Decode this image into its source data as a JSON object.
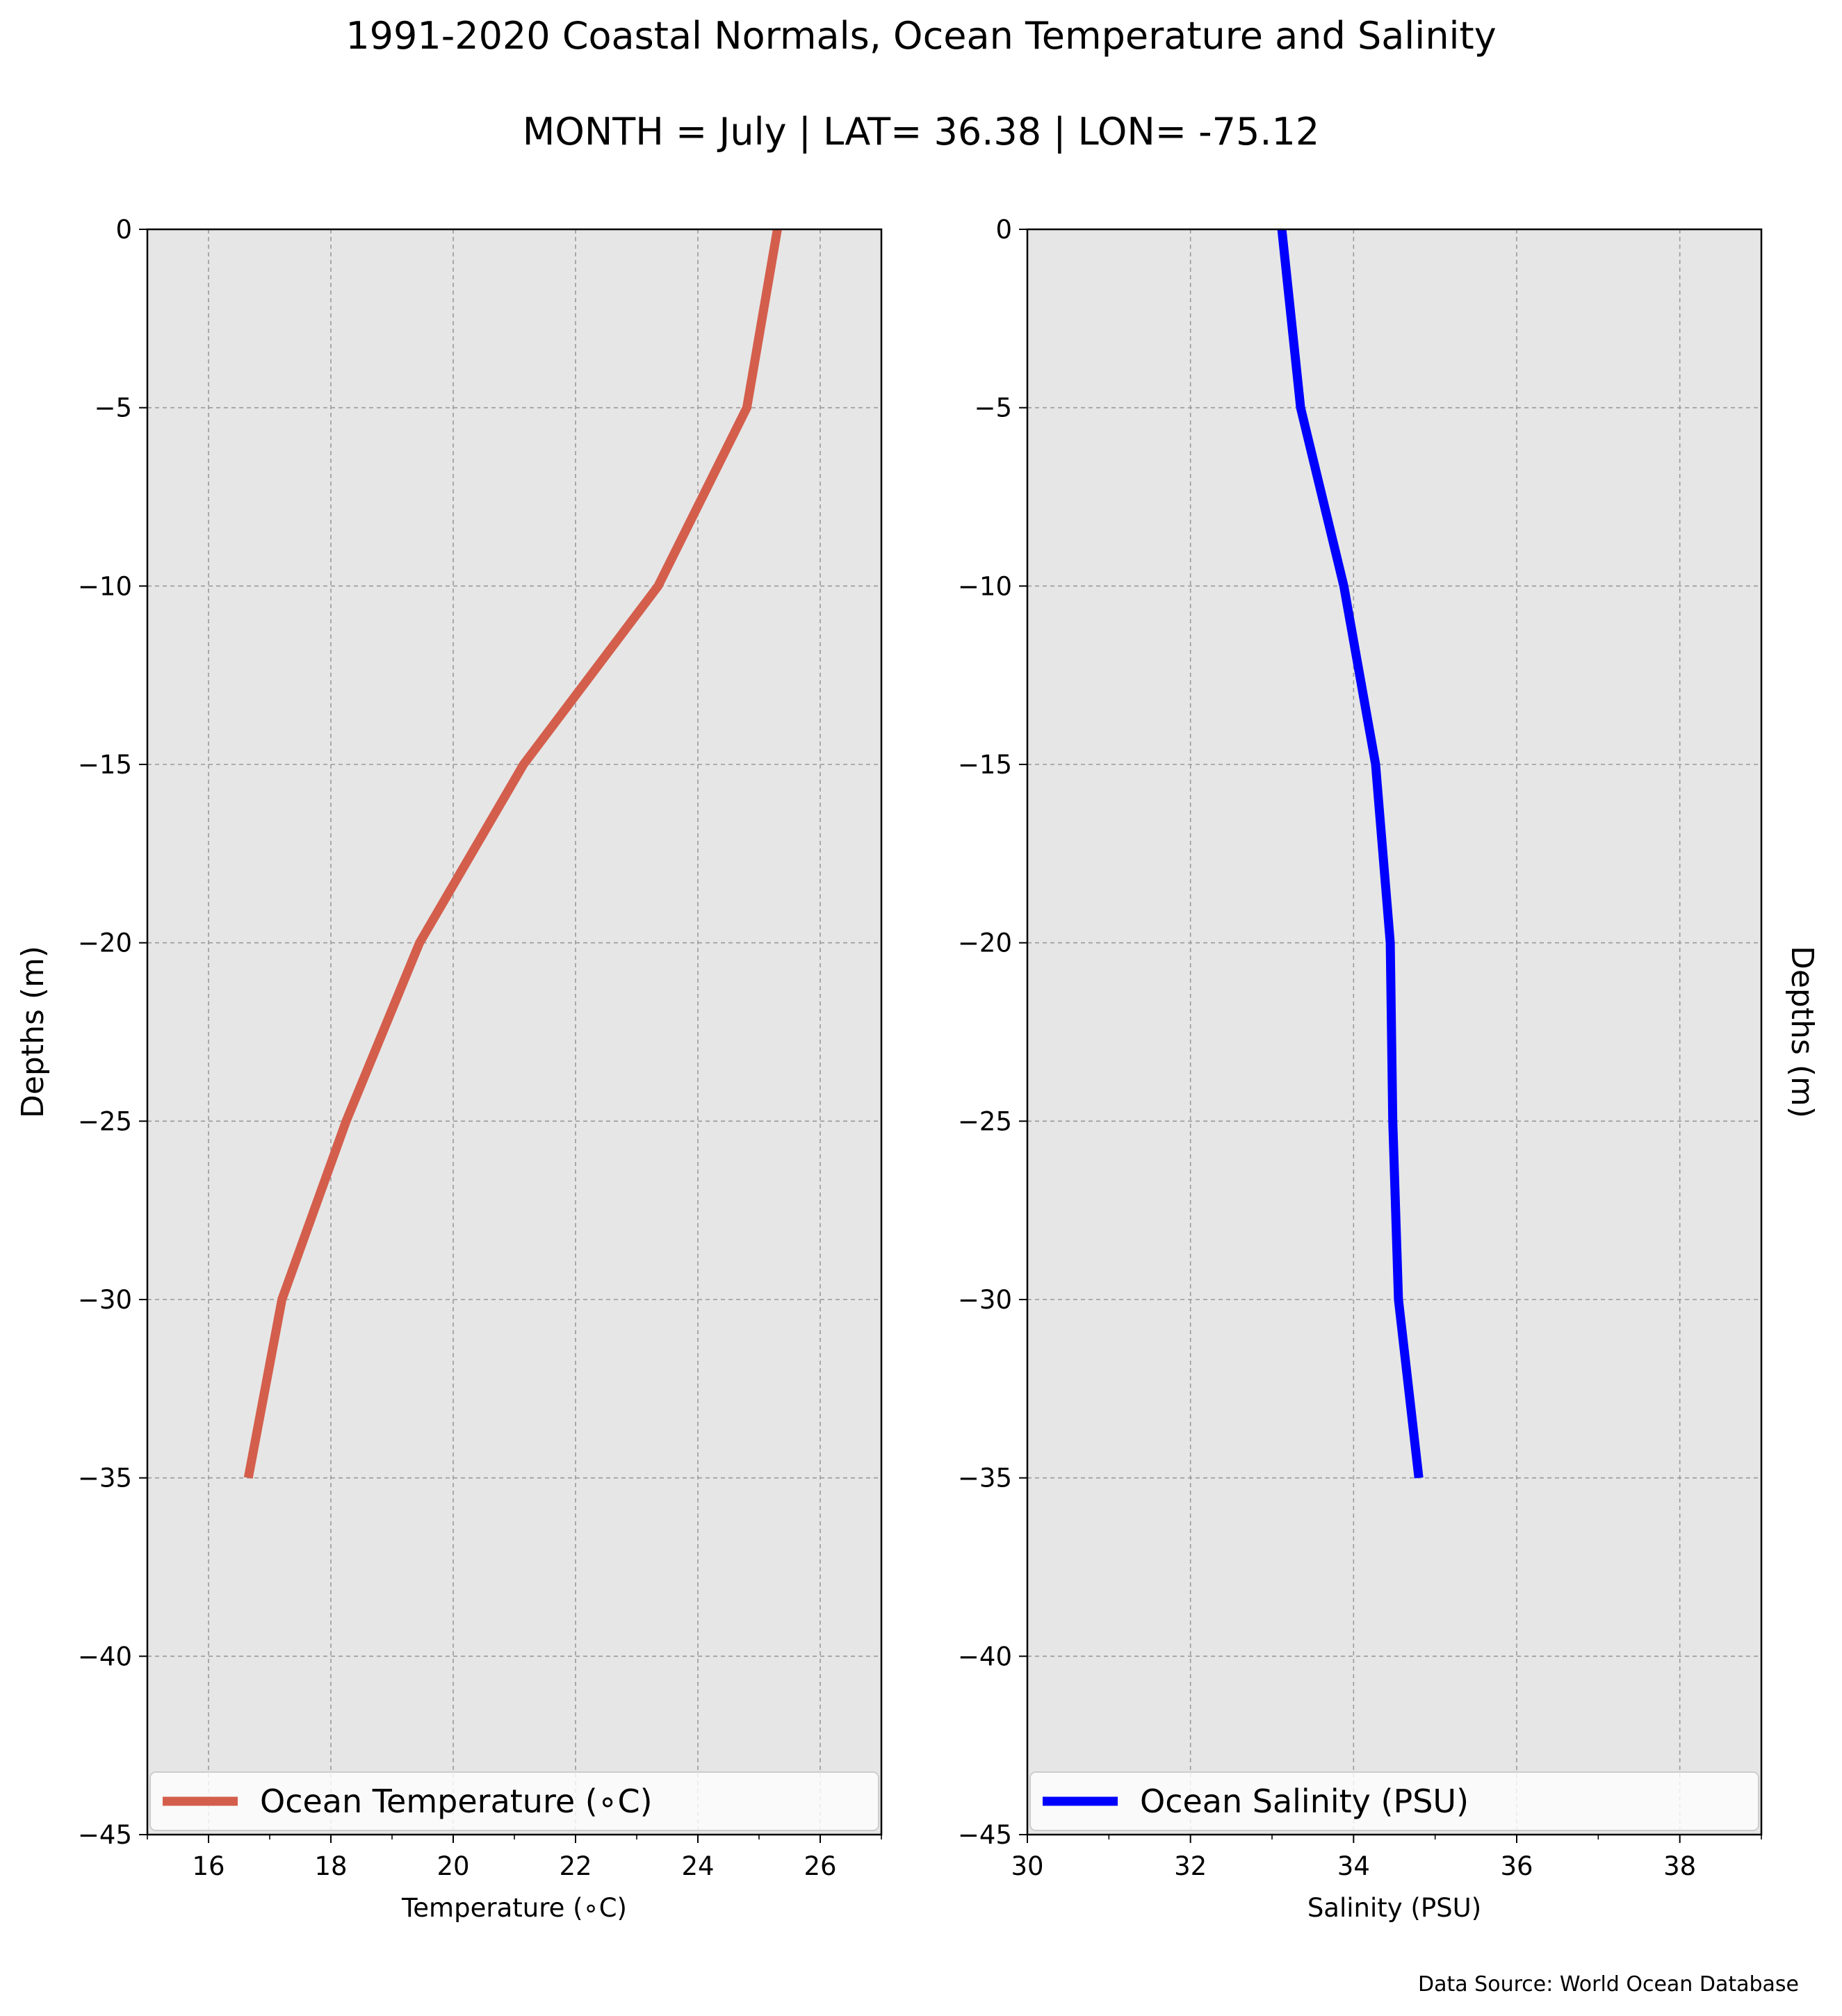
{
  "title": "1991-2020 Coastal Normals, Ocean Temperature and Salinity",
  "subtitle": "MONTH = July | LAT= 36.38 | LON= -75.12",
  "source": "Data Source: World Ocean Database",
  "chart_data": [
    {
      "type": "line",
      "xlabel": "Temperature (∘C)",
      "ylabel": "Depths (m)",
      "xlim": [
        15,
        27
      ],
      "ylim": [
        -45,
        0
      ],
      "xticks": [
        16,
        18,
        20,
        22,
        24,
        26
      ],
      "yticks": [
        0,
        -5,
        -10,
        -15,
        -20,
        -25,
        -30,
        -35,
        -40,
        -45
      ],
      "grid": true,
      "legend_position": "lower center",
      "series": [
        {
          "name": "Ocean Temperature (∘C)",
          "color": "#d45e4c",
          "x": [
            25.3,
            24.8,
            23.35,
            21.15,
            19.45,
            18.25,
            17.2,
            16.65
          ],
          "y": [
            0,
            -5,
            -10,
            -15,
            -20,
            -25,
            -30,
            -35
          ]
        }
      ]
    },
    {
      "type": "line",
      "xlabel": "Salinity (PSU)",
      "ylabel": "Depths (m)",
      "xlim": [
        30,
        39
      ],
      "ylim": [
        -45,
        0
      ],
      "xticks": [
        30,
        32,
        34,
        36,
        38
      ],
      "yticks": [
        0,
        -5,
        -10,
        -15,
        -20,
        -25,
        -30,
        -35,
        -40,
        -45
      ],
      "grid": true,
      "legend_position": "lower center",
      "series": [
        {
          "name": "Ocean Salinity (PSU)",
          "color": "#0000ff",
          "x": [
            33.12,
            33.35,
            33.88,
            34.27,
            34.45,
            34.48,
            34.55,
            34.8
          ],
          "y": [
            0,
            -5,
            -10,
            -15,
            -20,
            -25,
            -30,
            -35
          ]
        }
      ]
    }
  ]
}
